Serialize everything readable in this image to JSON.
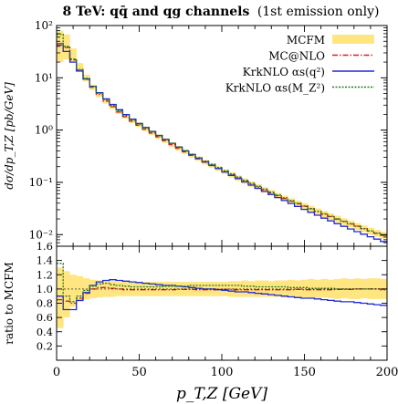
{
  "title": {
    "bold": "8 TeV: qq̄ and qg channels",
    "normal": "(1st emission only)"
  },
  "chart_data": [
    {
      "type": "line",
      "panel": "main",
      "ylabel": "dσ/dp_T,Z [pb/GeV]",
      "yscale": "log",
      "ylim": [
        0.006,
        100
      ],
      "xlim": [
        0,
        200
      ],
      "yticks": [
        {
          "value": 100,
          "label": "10²"
        },
        {
          "value": 10,
          "label": "10¹"
        },
        {
          "value": 1,
          "label": "10⁰"
        },
        {
          "value": 0.1,
          "label": "10⁻¹"
        },
        {
          "value": 0.01,
          "label": "10⁻²"
        }
      ],
      "bin_width": 4,
      "bin_edges_start": 0,
      "legend_position": "top-right",
      "series": [
        {
          "name": "MCFM",
          "style": "band",
          "color": "#ffe680",
          "values": [
            50,
            45,
            28,
            16,
            10,
            6.6,
            4.7,
            3.55,
            2.8,
            2.25,
            1.85,
            1.52,
            1.27,
            1.06,
            0.89,
            0.75,
            0.63,
            0.53,
            0.45,
            0.385,
            0.33,
            0.285,
            0.245,
            0.212,
            0.184,
            0.16,
            0.139,
            0.121,
            0.106,
            0.093,
            0.082,
            0.072,
            0.0635,
            0.056,
            0.0495,
            0.044,
            0.0392,
            0.0349,
            0.0311,
            0.0278,
            0.0249,
            0.0223,
            0.02,
            0.0179,
            0.0161,
            0.0145,
            0.0131,
            0.0118,
            0.0107,
            0.0098
          ],
          "band_fraction": [
            0.6,
            0.5,
            0.3,
            0.2,
            0.15,
            0.12,
            0.1,
            0.1,
            0.1,
            0.1,
            0.1,
            0.1,
            0.1,
            0.1,
            0.1,
            0.1,
            0.1,
            0.1,
            0.1,
            0.1,
            0.1,
            0.1,
            0.1,
            0.1,
            0.1,
            0.1,
            0.12,
            0.12,
            0.12,
            0.12,
            0.12,
            0.12,
            0.12,
            0.12,
            0.12,
            0.12,
            0.14,
            0.14,
            0.14,
            0.14,
            0.14,
            0.14,
            0.15,
            0.15,
            0.15,
            0.15,
            0.15,
            0.15,
            0.15,
            0.15
          ]
        },
        {
          "name": "MC@NLO",
          "style": "dash-dot",
          "color": "#d62020",
          "values": [
            42,
            38,
            22,
            14,
            9.4,
            6.6,
            4.8,
            3.6,
            2.8,
            2.22,
            1.8,
            1.48,
            1.24,
            1.04,
            0.875,
            0.74,
            0.625,
            0.527,
            0.448,
            0.383,
            0.328,
            0.282,
            0.243,
            0.21,
            0.183,
            0.159,
            0.138,
            0.12,
            0.105,
            0.092,
            0.081,
            0.0712,
            0.0628,
            0.0555,
            0.0491,
            0.0436,
            0.0389,
            0.0346,
            0.0309,
            0.0276,
            0.0247,
            0.0221,
            0.0198,
            0.0178,
            0.016,
            0.0144,
            0.013,
            0.0117,
            0.0106,
            0.0097
          ]
        },
        {
          "name": "KrkNLO αs(q²)",
          "style": "solid",
          "color": "#1f2bd6",
          "values": [
            45,
            32,
            20,
            13.5,
            9.5,
            6.9,
            5.2,
            3.95,
            3.1,
            2.45,
            1.98,
            1.62,
            1.34,
            1.12,
            0.94,
            0.79,
            0.665,
            0.56,
            0.472,
            0.4,
            0.34,
            0.29,
            0.248,
            0.213,
            0.184,
            0.158,
            0.136,
            0.118,
            0.102,
            0.0885,
            0.077,
            0.0672,
            0.0587,
            0.0513,
            0.0449,
            0.0394,
            0.0346,
            0.0304,
            0.0267,
            0.0235,
            0.0207,
            0.0183,
            0.0162,
            0.0144,
            0.0128,
            0.0114,
            0.0102,
            0.0091,
            0.0082,
            0.0074
          ]
        },
        {
          "name": "KrkNLO αs(M_Z²)",
          "style": "dotted",
          "color": "#1f7a1f",
          "values": [
            68,
            40,
            23,
            14.5,
            9.8,
            6.9,
            5.05,
            3.8,
            2.95,
            2.34,
            1.9,
            1.56,
            1.3,
            1.09,
            0.92,
            0.778,
            0.66,
            0.558,
            0.474,
            0.404,
            0.346,
            0.297,
            0.256,
            0.221,
            0.192,
            0.167,
            0.145,
            0.126,
            0.11,
            0.0963,
            0.0845,
            0.0741,
            0.0652,
            0.0574,
            0.0506,
            0.0448,
            0.0398,
            0.0354,
            0.0315,
            0.0281,
            0.0251,
            0.0225,
            0.0201,
            0.018,
            0.0162,
            0.0146,
            0.0131,
            0.0118,
            0.0107,
            0.0097
          ]
        }
      ]
    },
    {
      "type": "line",
      "panel": "ratio",
      "xlabel": "p_T,Z [GeV]",
      "ylabel": "ratio to MCFM",
      "xlim": [
        0,
        200
      ],
      "ylim": [
        0,
        1.6
      ],
      "xticks": [
        0,
        50,
        100,
        150,
        200
      ],
      "yticks": [
        0.2,
        0.4,
        0.6,
        0.8,
        1.0,
        1.2,
        1.4,
        1.6
      ],
      "bin_width": 4,
      "series": [
        {
          "name": "MCFM",
          "style": "band",
          "color": "#ffe680",
          "lo": [
            0.45,
            0.6,
            0.75,
            0.82,
            0.85,
            0.87,
            0.88,
            0.89,
            0.89,
            0.9,
            0.9,
            0.9,
            0.9,
            0.9,
            0.9,
            0.9,
            0.9,
            0.9,
            0.9,
            0.9,
            0.9,
            0.9,
            0.9,
            0.9,
            0.9,
            0.9,
            0.89,
            0.89,
            0.89,
            0.89,
            0.89,
            0.89,
            0.89,
            0.89,
            0.88,
            0.88,
            0.87,
            0.88,
            0.87,
            0.87,
            0.88,
            0.87,
            0.86,
            0.87,
            0.86,
            0.86,
            0.87,
            0.86,
            0.86,
            0.86
          ],
          "hi": [
            1.3,
            1.25,
            1.2,
            1.18,
            1.15,
            1.13,
            1.12,
            1.11,
            1.11,
            1.1,
            1.1,
            1.1,
            1.1,
            1.1,
            1.1,
            1.1,
            1.1,
            1.1,
            1.1,
            1.1,
            1.1,
            1.1,
            1.1,
            1.1,
            1.1,
            1.1,
            1.11,
            1.11,
            1.12,
            1.11,
            1.12,
            1.12,
            1.11,
            1.12,
            1.12,
            1.13,
            1.12,
            1.13,
            1.14,
            1.13,
            1.14,
            1.13,
            1.14,
            1.15,
            1.14,
            1.15,
            1.14,
            1.15,
            1.15,
            1.14
          ]
        },
        {
          "name": "MC@NLO",
          "style": "dash-dot",
          "color": "#d62020",
          "values": [
            0.85,
            0.83,
            0.8,
            0.87,
            0.94,
            1.0,
            1.02,
            1.02,
            1.01,
            1.0,
            0.99,
            0.99,
            0.99,
            0.99,
            0.99,
            0.99,
            0.99,
            0.99,
            0.995,
            0.995,
            0.995,
            0.99,
            0.99,
            0.99,
            0.995,
            0.995,
            0.995,
            0.99,
            0.99,
            0.99,
            0.99,
            0.99,
            0.99,
            0.99,
            0.99,
            0.99,
            0.995,
            0.99,
            0.99,
            0.99,
            0.99,
            0.99,
            0.995,
            0.995,
            0.995,
            1.0,
            1.0,
            1.0,
            1.0,
            1.0
          ]
        },
        {
          "name": "KrkNLO αs(q²)",
          "style": "solid",
          "color": "#1f2bd6",
          "values": [
            0.9,
            0.71,
            0.71,
            0.84,
            0.95,
            1.05,
            1.1,
            1.12,
            1.13,
            1.12,
            1.11,
            1.1,
            1.09,
            1.08,
            1.07,
            1.06,
            1.05,
            1.05,
            1.04,
            1.03,
            1.02,
            1.01,
            1.0,
            1.0,
            0.99,
            0.98,
            0.97,
            0.96,
            0.96,
            0.95,
            0.94,
            0.93,
            0.92,
            0.91,
            0.9,
            0.89,
            0.88,
            0.87,
            0.87,
            0.86,
            0.85,
            0.84,
            0.83,
            0.82,
            0.82,
            0.81,
            0.8,
            0.79,
            0.78,
            0.77
          ]
        },
        {
          "name": "KrkNLO αs(M_Z²)",
          "style": "dotted",
          "color": "#1f7a1f",
          "values": [
            1.36,
            0.9,
            0.82,
            0.9,
            0.98,
            1.04,
            1.07,
            1.08,
            1.06,
            1.05,
            1.04,
            1.03,
            1.03,
            1.03,
            1.03,
            1.03,
            1.04,
            1.04,
            1.04,
            1.04,
            1.05,
            1.05,
            1.05,
            1.05,
            1.05,
            1.05,
            1.05,
            1.05,
            1.04,
            1.04,
            1.03,
            1.03,
            1.03,
            1.03,
            1.03,
            1.02,
            1.02,
            1.02,
            1.01,
            1.01,
            1.01,
            1.01,
            1.0,
            1.0,
            1.0,
            1.0,
            1.0,
            1.0,
            1.0,
            0.99
          ]
        }
      ]
    }
  ]
}
